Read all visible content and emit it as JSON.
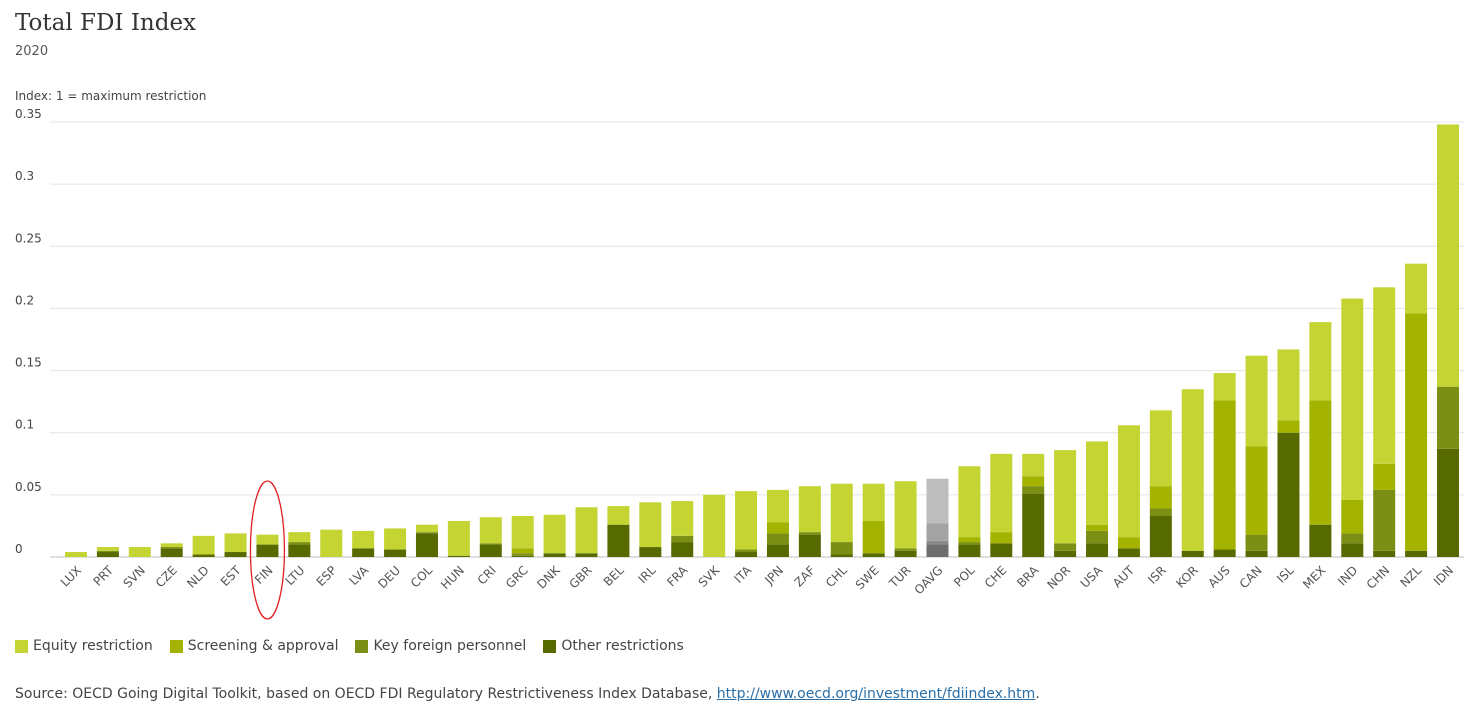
{
  "header": {
    "title": "Total FDI Index",
    "subtitle": "2020",
    "unit_label": "Index: 1 = maximum restriction"
  },
  "legend": {
    "items": [
      {
        "label": "Equity restriction",
        "color": "#c4d433"
      },
      {
        "label": "Screening & approval",
        "color": "#a3b300"
      },
      {
        "label": "Key foreign personnel",
        "color": "#7a8f14"
      },
      {
        "label": "Other restrictions",
        "color": "#566a00"
      }
    ]
  },
  "source": {
    "text": "Source: OECD Going Digital Toolkit, based on OECD FDI Regulatory Restrictiveness Index Database, ",
    "link": "http://www.oecd.org/investment/fdiindex.htm",
    "suffix": "."
  },
  "highlight": {
    "category": "FIN",
    "shape": "ellipse",
    "color": "#e02020"
  },
  "chart_data": {
    "type": "bar",
    "stacked": true,
    "ylim": [
      0,
      0.35
    ],
    "yticks": [
      0,
      0.05,
      0.1,
      0.15,
      0.2,
      0.25,
      0.3,
      0.35
    ],
    "ytick_labels": [
      "0",
      "0.05",
      "0.1",
      "0.15",
      "0.2",
      "0.25",
      "0.3",
      "0.35"
    ],
    "grid": true,
    "legend_position": "bottom",
    "special_category": {
      "name": "OAVG",
      "colors": [
        "#bdbdbd",
        "#a3a3a3",
        "#8a8a8a",
        "#6e6e6e"
      ]
    },
    "categories": [
      "LUX",
      "PRT",
      "SVN",
      "CZE",
      "NLD",
      "EST",
      "FIN",
      "LTU",
      "ESP",
      "LVA",
      "DEU",
      "COL",
      "HUN",
      "CRI",
      "GRC",
      "DNK",
      "GBR",
      "BEL",
      "IRL",
      "FRA",
      "SVK",
      "ITA",
      "JPN",
      "ZAF",
      "CHL",
      "SWE",
      "TUR",
      "OAVG",
      "POL",
      "CHE",
      "BRA",
      "NOR",
      "USA",
      "AUT",
      "ISR",
      "KOR",
      "AUS",
      "CAN",
      "ISL",
      "MEX",
      "IND",
      "CHN",
      "NZL",
      "IDN"
    ],
    "series": [
      {
        "name": "Other restrictions",
        "color": "#566a00",
        "values": [
          0,
          0.004,
          0,
          0.007,
          0.002,
          0.004,
          0.01,
          0.01,
          0,
          0.007,
          0.006,
          0.019,
          0.001,
          0.01,
          0.001,
          0.003,
          0.003,
          0.026,
          0.008,
          0.012,
          0,
          0.004,
          0.01,
          0.018,
          0.002,
          0.003,
          0.005,
          0.01,
          0.01,
          0.011,
          0.051,
          0.005,
          0.011,
          0.007,
          0.033,
          0.005,
          0.006,
          0.005,
          0.1,
          0.026,
          0.011,
          0.005,
          0.005,
          0.087
        ]
      },
      {
        "name": "Key foreign personnel",
        "color": "#7a8f14",
        "values": [
          0,
          0.001,
          0,
          0.001,
          0,
          0,
          0,
          0.002,
          0,
          0,
          0,
          0.001,
          0,
          0.001,
          0.002,
          0,
          0,
          0,
          0,
          0.005,
          0,
          0.002,
          0.009,
          0.002,
          0.01,
          0,
          0.002,
          0.003,
          0.002,
          0,
          0.006,
          0.006,
          0.01,
          0,
          0.006,
          0,
          0,
          0.013,
          0,
          0,
          0.008,
          0.049,
          0,
          0.05
        ]
      },
      {
        "name": "Screening & approval",
        "color": "#a3b300",
        "values": [
          0,
          0,
          0,
          0,
          0,
          0,
          0,
          0,
          0,
          0,
          0,
          0,
          0,
          0,
          0.004,
          0,
          0,
          0,
          0,
          0,
          0,
          0,
          0.009,
          0,
          0,
          0.026,
          0,
          0.014,
          0.004,
          0.009,
          0.008,
          0,
          0.005,
          0.009,
          0.018,
          0,
          0.12,
          0.071,
          0.01,
          0.1,
          0.027,
          0.021,
          0.191,
          0
        ]
      },
      {
        "name": "Equity restriction",
        "color": "#c4d433",
        "values": [
          0.004,
          0.003,
          0.008,
          0.003,
          0.015,
          0.015,
          0.008,
          0.008,
          0.022,
          0.014,
          0.017,
          0.006,
          0.028,
          0.021,
          0.026,
          0.031,
          0.037,
          0.015,
          0.036,
          0.028,
          0.05,
          0.047,
          0.026,
          0.037,
          0.047,
          0.03,
          0.054,
          0.036,
          0.057,
          0.063,
          0.018,
          0.075,
          0.067,
          0.09,
          0.061,
          0.13,
          0.022,
          0.073,
          0.057,
          0.063,
          0.162,
          0.142,
          0.04,
          0.211
        ]
      }
    ]
  }
}
